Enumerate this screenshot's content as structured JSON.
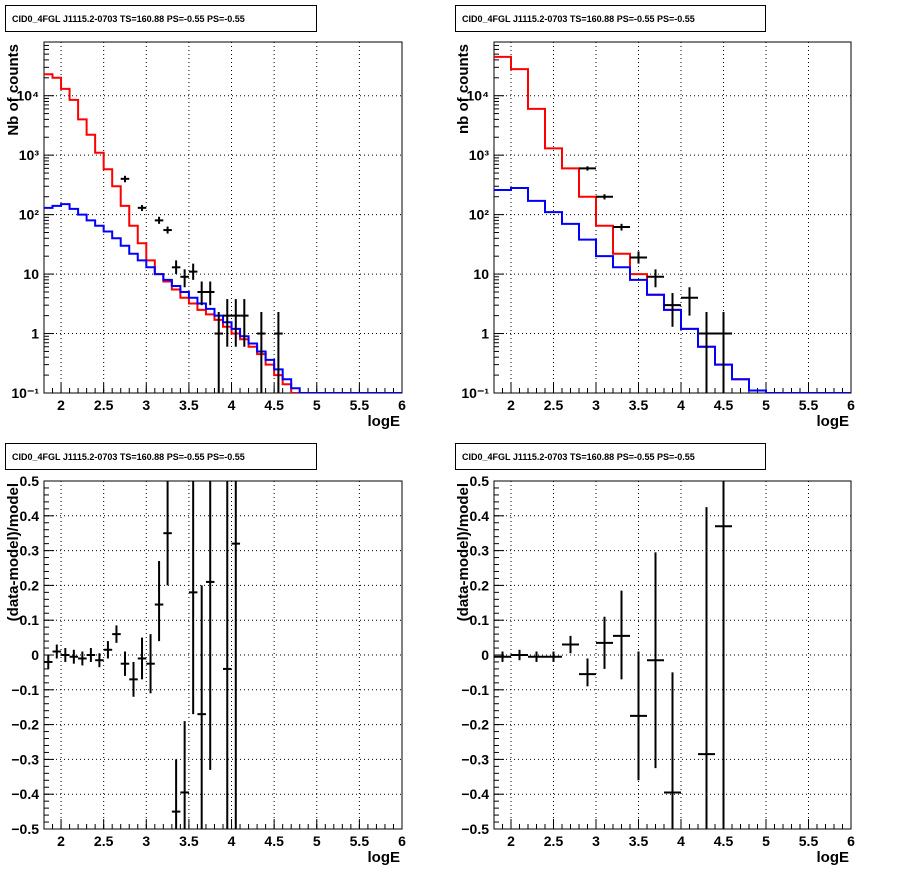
{
  "colors": {
    "model": "#ff0000",
    "background": "#0000ff",
    "data": "#000000",
    "grid": "#000000"
  },
  "chart_data": [
    {
      "type": "line",
      "title": "CID0_4FGL J1115.2-0703 TS=160.88 PS=-0.55 PS=-0.55",
      "xlabel": "logE",
      "ylabel": "Nb of counts",
      "xlim": [
        1.8,
        6.0
      ],
      "ylim": [
        0.1,
        80000
      ],
      "yscale": "log",
      "grid": true,
      "xticks": [
        2,
        2.5,
        3,
        3.5,
        4,
        4.5,
        5,
        5.5,
        6
      ],
      "xticklabels": [
        "2",
        "2.5",
        "3",
        "3.5",
        "4",
        "4.5",
        "5",
        "5.5",
        "6"
      ],
      "yticks": [
        0.1,
        1,
        10,
        100,
        1000,
        10000
      ],
      "yticklabels": [
        "10⁻¹",
        "1",
        "10",
        "10²",
        "10³",
        "10⁴"
      ],
      "series": [
        {
          "kind": "step",
          "color": "#ff0000",
          "edges": [
            1.8,
            1.9,
            2.0,
            2.1,
            2.2,
            2.3,
            2.4,
            2.5,
            2.6,
            2.7,
            2.8,
            2.9,
            3.0,
            3.1,
            3.2,
            3.3,
            3.4,
            3.5,
            3.6,
            3.7,
            3.8,
            3.9,
            4.0,
            4.1,
            4.2,
            4.3,
            4.4,
            4.5,
            4.6,
            4.7,
            4.8,
            4.9,
            5.0,
            5.1,
            5.2,
            5.3,
            5.4,
            5.5,
            5.6,
            5.7,
            5.8,
            5.9,
            6.0
          ],
          "values": [
            23000,
            20000,
            13000,
            8500,
            4000,
            2200,
            1100,
            580,
            300,
            140,
            65,
            33,
            17,
            10,
            7.5,
            5.5,
            4,
            3.2,
            2.5,
            2.1,
            1.7,
            1.3,
            1.0,
            0.8,
            0.6,
            0.45,
            0.3,
            0.2,
            0.14,
            0.1,
            0.1,
            0.1,
            0.1,
            0.1,
            0.1,
            0.1,
            0.1,
            0.1,
            0.1,
            0.1,
            0.1,
            0.1
          ]
        },
        {
          "kind": "step",
          "color": "#0000ff",
          "edges": [
            1.8,
            1.9,
            2.0,
            2.1,
            2.2,
            2.3,
            2.4,
            2.5,
            2.6,
            2.7,
            2.8,
            2.9,
            3.0,
            3.1,
            3.2,
            3.3,
            3.4,
            3.5,
            3.6,
            3.7,
            3.8,
            3.9,
            4.0,
            4.1,
            4.2,
            4.3,
            4.4,
            4.5,
            4.6,
            4.7,
            4.8,
            4.9,
            5.0,
            5.1,
            5.2,
            5.3,
            5.4,
            5.5,
            5.6,
            5.7,
            5.8,
            5.9,
            6.0
          ],
          "values": [
            130,
            140,
            150,
            125,
            100,
            80,
            65,
            52,
            40,
            30,
            22,
            17,
            13,
            10,
            8,
            6.3,
            5,
            4,
            3.2,
            2.6,
            2.0,
            1.55,
            1.2,
            0.9,
            0.68,
            0.5,
            0.36,
            0.25,
            0.17,
            0.12,
            0.1,
            0.1,
            0.1,
            0.1,
            0.1,
            0.1,
            0.1,
            0.1,
            0.1,
            0.1,
            0.1,
            0.1
          ]
        }
      ],
      "points": [
        {
          "x": 2.75,
          "y": 400,
          "xerr": 0.05,
          "ylo": 350,
          "yhi": 450
        },
        {
          "x": 2.95,
          "y": 130,
          "xerr": 0.05,
          "ylo": 115,
          "yhi": 145
        },
        {
          "x": 3.15,
          "y": 80,
          "xerr": 0.05,
          "ylo": 70,
          "yhi": 92
        },
        {
          "x": 3.25,
          "y": 55,
          "xerr": 0.05,
          "ylo": 48,
          "yhi": 63
        },
        {
          "x": 3.35,
          "y": 13,
          "xerr": 0.05,
          "ylo": 10,
          "yhi": 17
        },
        {
          "x": 3.45,
          "y": 9,
          "xerr": 0.05,
          "ylo": 6,
          "yhi": 12
        },
        {
          "x": 3.55,
          "y": 11,
          "xerr": 0.05,
          "ylo": 8,
          "yhi": 15
        },
        {
          "x": 3.65,
          "y": 5,
          "xerr": 0.05,
          "ylo": 3,
          "yhi": 7.5
        },
        {
          "x": 3.75,
          "y": 5,
          "xerr": 0.05,
          "ylo": 3,
          "yhi": 7.5
        },
        {
          "x": 3.85,
          "y": 1,
          "xerr": 0.05,
          "ylo": 0.1,
          "yhi": 2.3
        },
        {
          "x": 3.95,
          "y": 2,
          "xerr": 0.05,
          "ylo": 0.6,
          "yhi": 3.8
        },
        {
          "x": 4.05,
          "y": 2,
          "xerr": 0.05,
          "ylo": 0.6,
          "yhi": 3.8
        },
        {
          "x": 4.15,
          "y": 2,
          "xerr": 0.05,
          "ylo": 0.6,
          "yhi": 3.8
        },
        {
          "x": 4.35,
          "y": 1,
          "xerr": 0.05,
          "ylo": 0.1,
          "yhi": 2.3
        },
        {
          "x": 4.55,
          "y": 1,
          "xerr": 0.05,
          "ylo": 0.1,
          "yhi": 2.3
        }
      ]
    },
    {
      "type": "line",
      "title": "CID0_4FGL J1115.2-0703 TS=160.88 PS=-0.55 PS=-0.55",
      "xlabel": "logE",
      "ylabel": "nb of counts",
      "xlim": [
        1.8,
        6.0
      ],
      "ylim": [
        0.1,
        80000
      ],
      "yscale": "log",
      "grid": true,
      "xticks": [
        2,
        2.5,
        3,
        3.5,
        4,
        4.5,
        5,
        5.5,
        6
      ],
      "xticklabels": [
        "2",
        "2.5",
        "3",
        "3.5",
        "4",
        "4.5",
        "5",
        "5.5",
        "6"
      ],
      "yticks": [
        0.1,
        1,
        10,
        100,
        1000,
        10000
      ],
      "yticklabels": [
        "10⁻¹",
        "1",
        "10",
        "10²",
        "10³",
        "10⁴"
      ],
      "series": [
        {
          "kind": "step",
          "color": "#ff0000",
          "edges": [
            1.8,
            2.0,
            2.2,
            2.4,
            2.6,
            2.8,
            3.0,
            3.2,
            3.4,
            3.6,
            3.8,
            4.0,
            4.2,
            4.4,
            4.6,
            4.8,
            5.0,
            5.2,
            5.4,
            5.6,
            5.8,
            6.0
          ],
          "values": [
            45000,
            28000,
            6000,
            1300,
            600,
            200,
            65,
            22,
            10,
            4.5,
            2.5,
            1.2,
            0.6,
            0.3,
            0.17,
            0.11,
            0.1,
            0.1,
            0.1,
            0.1,
            0.1
          ]
        },
        {
          "kind": "step",
          "color": "#0000ff",
          "edges": [
            1.8,
            2.0,
            2.2,
            2.4,
            2.6,
            2.8,
            3.0,
            3.2,
            3.4,
            3.6,
            3.8,
            4.0,
            4.2,
            4.4,
            4.6,
            4.8,
            5.0,
            5.2,
            5.4,
            5.6,
            5.8,
            6.0
          ],
          "values": [
            260,
            280,
            170,
            110,
            70,
            38,
            20,
            13,
            8,
            4.5,
            2.5,
            1.2,
            0.6,
            0.3,
            0.17,
            0.11,
            0.1,
            0.1,
            0.1,
            0.1,
            0.1
          ]
        }
      ],
      "points": [
        {
          "x": 2.9,
          "y": 600,
          "xerr": 0.1,
          "ylo": 550,
          "yhi": 650
        },
        {
          "x": 3.1,
          "y": 200,
          "xerr": 0.1,
          "ylo": 180,
          "yhi": 220
        },
        {
          "x": 3.3,
          "y": 62,
          "xerr": 0.1,
          "ylo": 54,
          "yhi": 70
        },
        {
          "x": 3.5,
          "y": 19,
          "xerr": 0.1,
          "ylo": 15,
          "yhi": 24
        },
        {
          "x": 3.7,
          "y": 9,
          "xerr": 0.1,
          "ylo": 6,
          "yhi": 12
        },
        {
          "x": 3.9,
          "y": 3,
          "xerr": 0.1,
          "ylo": 1.3,
          "yhi": 4.8
        },
        {
          "x": 4.1,
          "y": 4,
          "xerr": 0.1,
          "ylo": 2,
          "yhi": 6
        },
        {
          "x": 4.3,
          "y": 1,
          "xerr": 0.1,
          "ylo": 0.1,
          "yhi": 2.3
        },
        {
          "x": 4.5,
          "y": 1,
          "xerr": 0.1,
          "ylo": 0.1,
          "yhi": 2.3
        }
      ]
    },
    {
      "type": "scatter",
      "title": "CID0_4FGL J1115.2-0703 TS=160.88 PS=-0.55 PS=-0.55",
      "xlabel": "logE",
      "ylabel": "(data-model)/model",
      "xlim": [
        1.8,
        6.0
      ],
      "ylim": [
        -0.5,
        0.5
      ],
      "yscale": "linear",
      "grid": true,
      "xticks": [
        2,
        2.5,
        3,
        3.5,
        4,
        4.5,
        5,
        5.5,
        6
      ],
      "xticklabels": [
        "2",
        "2.5",
        "3",
        "3.5",
        "4",
        "4.5",
        "5",
        "5.5",
        "6"
      ],
      "yticks": [
        -0.5,
        -0.4,
        -0.3,
        -0.2,
        -0.1,
        0,
        0.1,
        0.2,
        0.3,
        0.4,
        0.5
      ],
      "yticklabels": [
        "−0.5",
        "−0.4",
        "−0.3",
        "−0.2",
        "−0.1",
        "0",
        "0.1",
        "0.2",
        "0.3",
        "0.4",
        "0.5"
      ],
      "points": [
        {
          "x": 1.85,
          "y": -0.02,
          "xerr": 0.05,
          "ylo": -0.04,
          "yhi": 0.0
        },
        {
          "x": 1.95,
          "y": 0.01,
          "xerr": 0.05,
          "ylo": -0.01,
          "yhi": 0.03
        },
        {
          "x": 2.05,
          "y": 0.0,
          "xerr": 0.05,
          "ylo": -0.02,
          "yhi": 0.02
        },
        {
          "x": 2.15,
          "y": -0.005,
          "xerr": 0.05,
          "ylo": -0.025,
          "yhi": 0.015
        },
        {
          "x": 2.25,
          "y": -0.01,
          "xerr": 0.05,
          "ylo": -0.03,
          "yhi": 0.01
        },
        {
          "x": 2.35,
          "y": 0.0,
          "xerr": 0.05,
          "ylo": -0.02,
          "yhi": 0.02
        },
        {
          "x": 2.45,
          "y": -0.015,
          "xerr": 0.05,
          "ylo": -0.035,
          "yhi": 0.005
        },
        {
          "x": 2.55,
          "y": 0.015,
          "xerr": 0.05,
          "ylo": -0.01,
          "yhi": 0.04
        },
        {
          "x": 2.65,
          "y": 0.06,
          "xerr": 0.05,
          "ylo": 0.035,
          "yhi": 0.085
        },
        {
          "x": 2.75,
          "y": -0.025,
          "xerr": 0.05,
          "ylo": -0.06,
          "yhi": 0.01
        },
        {
          "x": 2.85,
          "y": -0.07,
          "xerr": 0.05,
          "ylo": -0.12,
          "yhi": -0.02
        },
        {
          "x": 2.95,
          "y": -0.01,
          "xerr": 0.05,
          "ylo": -0.07,
          "yhi": 0.05
        },
        {
          "x": 3.05,
          "y": -0.025,
          "xerr": 0.05,
          "ylo": -0.11,
          "yhi": 0.06
        },
        {
          "x": 3.15,
          "y": 0.145,
          "xerr": 0.05,
          "ylo": 0.04,
          "yhi": 0.27
        },
        {
          "x": 3.25,
          "y": 0.35,
          "xerr": 0.05,
          "ylo": 0.2,
          "yhi": 0.5
        },
        {
          "x": 3.35,
          "y": -0.45,
          "xerr": 0.05,
          "ylo": -0.5,
          "yhi": -0.3
        },
        {
          "x": 3.45,
          "y": -0.395,
          "xerr": 0.05,
          "ylo": -0.5,
          "yhi": -0.19
        },
        {
          "x": 3.55,
          "y": 0.18,
          "xerr": 0.05,
          "ylo": -0.17,
          "yhi": 0.5
        },
        {
          "x": 3.65,
          "y": -0.17,
          "xerr": 0.05,
          "ylo": -0.5,
          "yhi": 0.2
        },
        {
          "x": 3.75,
          "y": 0.21,
          "xerr": 0.05,
          "ylo": -0.33,
          "yhi": 0.5
        },
        {
          "x": 3.95,
          "y": -0.04,
          "xerr": 0.05,
          "ylo": -0.5,
          "yhi": 0.5
        },
        {
          "x": 4.05,
          "y": 0.32,
          "xerr": 0.05,
          "ylo": -0.5,
          "yhi": 0.5
        }
      ]
    },
    {
      "type": "scatter",
      "title": "CID0_4FGL J1115.2-0703 TS=160.88 PS=-0.55 PS=-0.55",
      "xlabel": "logE",
      "ylabel": "(data-model)/model",
      "xlim": [
        1.8,
        6.0
      ],
      "ylim": [
        -0.5,
        0.5
      ],
      "yscale": "linear",
      "grid": true,
      "xticks": [
        2,
        2.5,
        3,
        3.5,
        4,
        4.5,
        5,
        5.5,
        6
      ],
      "xticklabels": [
        "2",
        "2.5",
        "3",
        "3.5",
        "4",
        "4.5",
        "5",
        "5.5",
        "6"
      ],
      "yticks": [
        -0.5,
        -0.4,
        -0.3,
        -0.2,
        -0.1,
        0,
        0.1,
        0.2,
        0.3,
        0.4,
        0.5
      ],
      "yticklabels": [
        "−0.5",
        "−0.4",
        "−0.3",
        "−0.2",
        "−0.1",
        "0",
        "0.1",
        "0.2",
        "0.3",
        "0.4",
        "0.5"
      ],
      "points": [
        {
          "x": 1.9,
          "y": -0.005,
          "xerr": 0.1,
          "ylo": -0.02,
          "yhi": 0.01
        },
        {
          "x": 2.1,
          "y": 0.0,
          "xerr": 0.1,
          "ylo": -0.015,
          "yhi": 0.015
        },
        {
          "x": 2.3,
          "y": -0.005,
          "xerr": 0.1,
          "ylo": -0.02,
          "yhi": 0.01
        },
        {
          "x": 2.5,
          "y": -0.005,
          "xerr": 0.1,
          "ylo": -0.02,
          "yhi": 0.01
        },
        {
          "x": 2.7,
          "y": 0.03,
          "xerr": 0.1,
          "ylo": 0.005,
          "yhi": 0.055
        },
        {
          "x": 2.9,
          "y": -0.055,
          "xerr": 0.1,
          "ylo": -0.09,
          "yhi": -0.01
        },
        {
          "x": 3.1,
          "y": 0.035,
          "xerr": 0.1,
          "ylo": -0.04,
          "yhi": 0.11
        },
        {
          "x": 3.3,
          "y": 0.055,
          "xerr": 0.1,
          "ylo": -0.07,
          "yhi": 0.185
        },
        {
          "x": 3.5,
          "y": -0.175,
          "xerr": 0.1,
          "ylo": -0.36,
          "yhi": 0.01
        },
        {
          "x": 3.7,
          "y": -0.015,
          "xerr": 0.1,
          "ylo": -0.325,
          "yhi": 0.295
        },
        {
          "x": 3.9,
          "y": -0.395,
          "xerr": 0.1,
          "ylo": -0.5,
          "yhi": -0.05
        },
        {
          "x": 4.3,
          "y": -0.285,
          "xerr": 0.1,
          "ylo": -0.5,
          "yhi": 0.425
        },
        {
          "x": 4.5,
          "y": 0.37,
          "xerr": 0.1,
          "ylo": -0.5,
          "yhi": 0.5
        }
      ]
    }
  ]
}
